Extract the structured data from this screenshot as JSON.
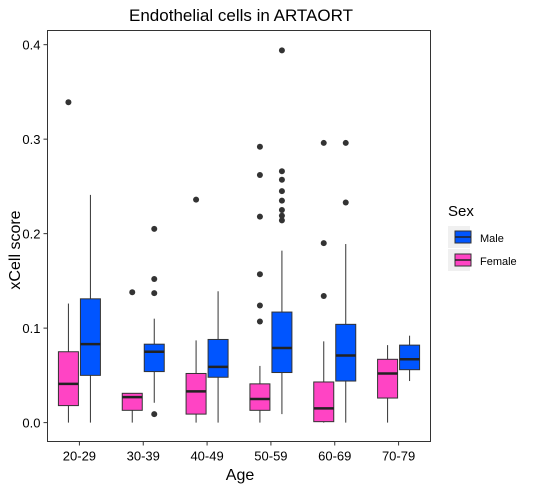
{
  "chart_data": {
    "type": "boxplot",
    "title": "Endothelial cells in ARTAORT",
    "xlabel": "Age",
    "ylabel": "xCell score",
    "ylim": [
      -0.02,
      0.415
    ],
    "yticks": [
      0.0,
      0.1,
      0.2,
      0.3,
      0.4
    ],
    "ytick_labels": [
      "0.0",
      "0.1",
      "0.2",
      "0.3",
      "0.4"
    ],
    "categories": [
      "20-29",
      "30-39",
      "40-49",
      "50-59",
      "60-69",
      "70-79"
    ],
    "grid": false,
    "legend": {
      "title": "Sex",
      "placement": "right",
      "entries": [
        {
          "name": "Male",
          "color": "#0055ff"
        },
        {
          "name": "Female",
          "color": "#ff44c4"
        }
      ]
    },
    "series": [
      {
        "name": "Female",
        "color": "#ff44c4",
        "boxes": [
          {
            "category": "20-29",
            "min": 0.0,
            "q1": 0.018,
            "median": 0.041,
            "q3": 0.075,
            "max": 0.126,
            "outliers": [
              0.339
            ]
          },
          {
            "category": "30-39",
            "min": 0.0,
            "q1": 0.013,
            "median": 0.027,
            "q3": 0.031,
            "max": 0.031,
            "outliers": [
              0.138
            ]
          },
          {
            "category": "40-49",
            "min": 0.0,
            "q1": 0.009,
            "median": 0.033,
            "q3": 0.052,
            "max": 0.087,
            "outliers": [
              0.236
            ]
          },
          {
            "category": "50-59",
            "min": 0.0,
            "q1": 0.013,
            "median": 0.025,
            "q3": 0.041,
            "max": 0.06,
            "outliers": [
              0.107,
              0.124,
              0.157,
              0.218,
              0.262,
              0.292
            ]
          },
          {
            "category": "60-69",
            "min": 0.0,
            "q1": 0.001,
            "median": 0.015,
            "q3": 0.043,
            "max": 0.086,
            "outliers": [
              0.134,
              0.19,
              0.296
            ]
          },
          {
            "category": "70-79",
            "min": 0.0,
            "q1": 0.026,
            "median": 0.052,
            "q3": 0.067,
            "max": 0.082,
            "outliers": []
          }
        ]
      },
      {
        "name": "Male",
        "color": "#0055ff",
        "boxes": [
          {
            "category": "20-29",
            "min": 0.0,
            "q1": 0.05,
            "median": 0.083,
            "q3": 0.131,
            "max": 0.241,
            "outliers": []
          },
          {
            "category": "30-39",
            "min": 0.021,
            "q1": 0.054,
            "median": 0.075,
            "q3": 0.083,
            "max": 0.11,
            "outliers": [
              0.009,
              0.137,
              0.152,
              0.205
            ]
          },
          {
            "category": "40-49",
            "min": 0.0,
            "q1": 0.048,
            "median": 0.059,
            "q3": 0.088,
            "max": 0.139,
            "outliers": []
          },
          {
            "category": "50-59",
            "min": 0.009,
            "q1": 0.053,
            "median": 0.079,
            "q3": 0.117,
            "max": 0.182,
            "outliers": [
              0.214,
              0.219,
              0.225,
              0.235,
              0.245,
              0.257,
              0.266,
              0.394
            ]
          },
          {
            "category": "60-69",
            "min": 0.0,
            "q1": 0.044,
            "median": 0.071,
            "q3": 0.104,
            "max": 0.189,
            "outliers": [
              0.233,
              0.296
            ]
          },
          {
            "category": "70-79",
            "min": 0.044,
            "q1": 0.056,
            "median": 0.067,
            "q3": 0.082,
            "max": 0.092,
            "outliers": []
          }
        ]
      }
    ]
  }
}
